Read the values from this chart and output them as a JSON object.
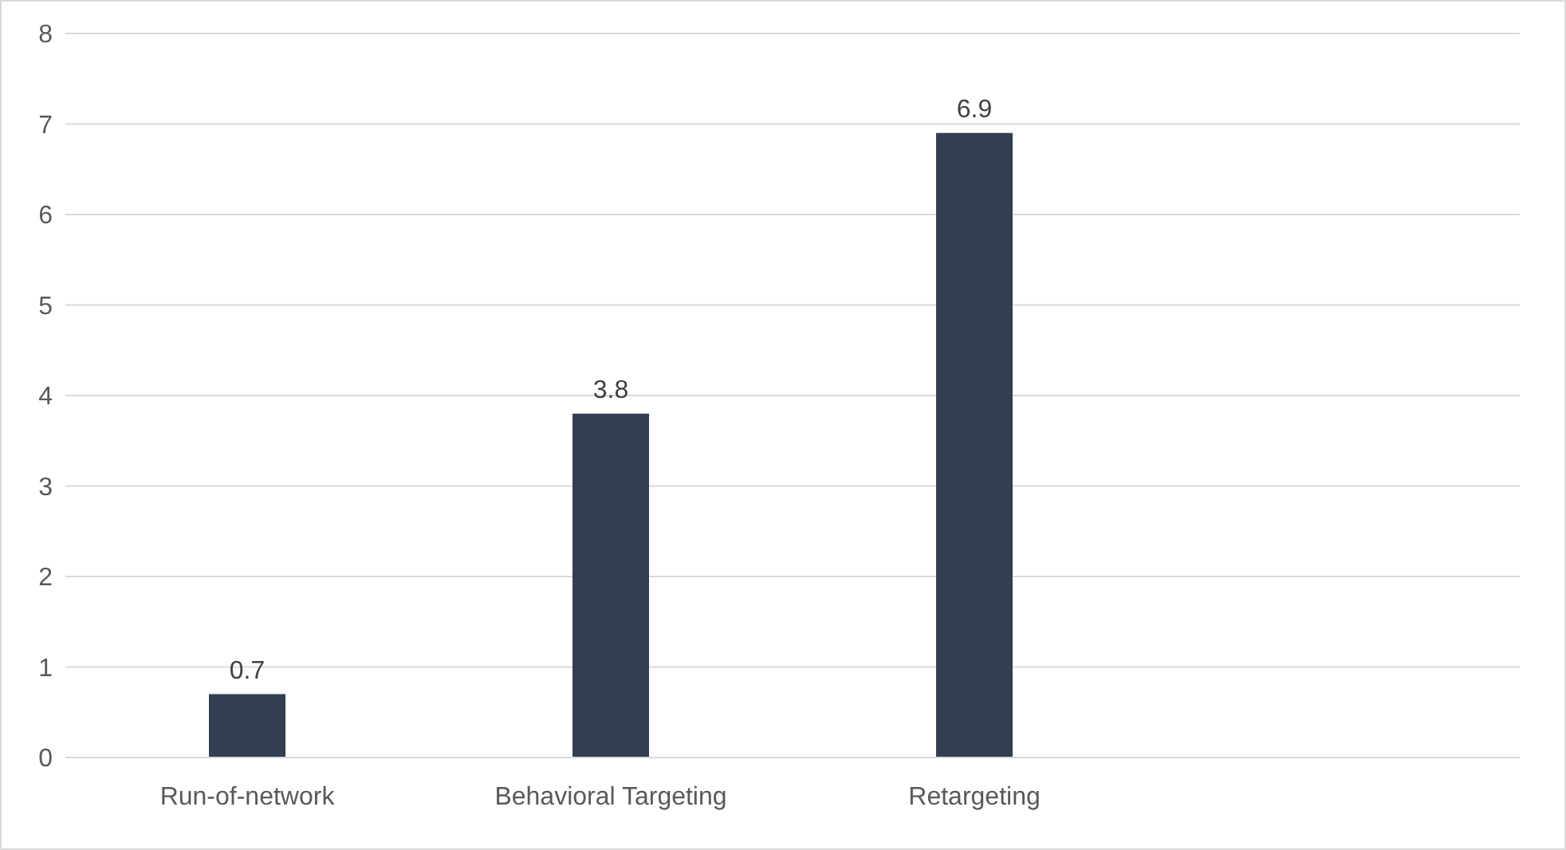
{
  "chart_data": {
    "type": "bar",
    "categories": [
      "Run-of-network",
      "Behavioral Targeting",
      "Retargeting",
      null
    ],
    "values": [
      0.7,
      3.8,
      6.9,
      null
    ],
    "color": "#333f50",
    "ylim": [
      0,
      8
    ],
    "yticks": [
      0,
      1,
      2,
      3,
      4,
      5,
      6,
      7,
      8
    ],
    "grid": "y",
    "data_labels": true
  }
}
